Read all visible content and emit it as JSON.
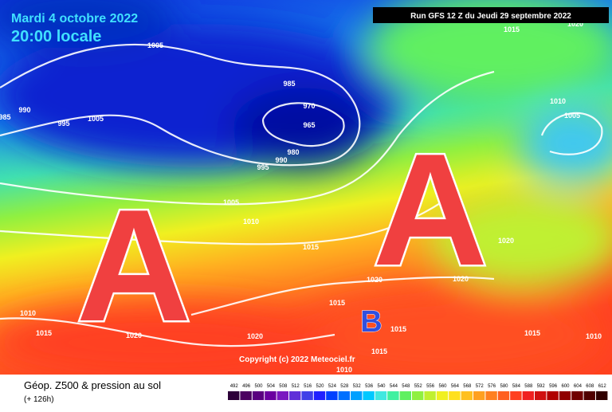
{
  "header": {
    "date": "Mardi 4 octobre 2022",
    "time": "20:00 locale",
    "run": "Run GFS 12 Z du Jeudi 29 septembre 2022"
  },
  "map": {
    "centers": [
      "A",
      "A",
      "B"
    ],
    "isobar_labels": [
      "985",
      "990",
      "995",
      "1005",
      "1005",
      "985",
      "970",
      "965",
      "980",
      "990",
      "995",
      "1005",
      "1010",
      "1015",
      "1020",
      "1015",
      "1015",
      "1015",
      "1010",
      "1020",
      "1020",
      "1010",
      "1015",
      "1015",
      "1020",
      "1010",
      "1005",
      "1020",
      "1020",
      "1015",
      "1010"
    ],
    "copyright": "Copyright (c) 2022 Meteociel.fr"
  },
  "footer": {
    "title": "Géop. Z500 & pression au sol",
    "lead": "(+ 126h)"
  },
  "legend": {
    "labels": [
      "492",
      "496",
      "500",
      "504",
      "508",
      "512",
      "516",
      "520",
      "524",
      "528",
      "532",
      "536",
      "540",
      "544",
      "548",
      "552",
      "556",
      "560",
      "564",
      "568",
      "572",
      "576",
      "580",
      "584",
      "588",
      "592",
      "596",
      "600",
      "604",
      "608",
      "612"
    ],
    "colors": [
      "#2d0038",
      "#4b0060",
      "#5a0080",
      "#6a00a0",
      "#7a18c0",
      "#6030d8",
      "#4040e8",
      "#2020ff",
      "#0040ff",
      "#0070ff",
      "#00a0ff",
      "#00c8ff",
      "#40e8e0",
      "#40f0a0",
      "#60f060",
      "#90f040",
      "#c0f030",
      "#f0f020",
      "#ffe020",
      "#ffc020",
      "#ffa020",
      "#ff8020",
      "#ff6020",
      "#ff4020",
      "#f02020",
      "#d01010",
      "#b00000",
      "#900000",
      "#700000",
      "#500000",
      "#300000"
    ]
  }
}
